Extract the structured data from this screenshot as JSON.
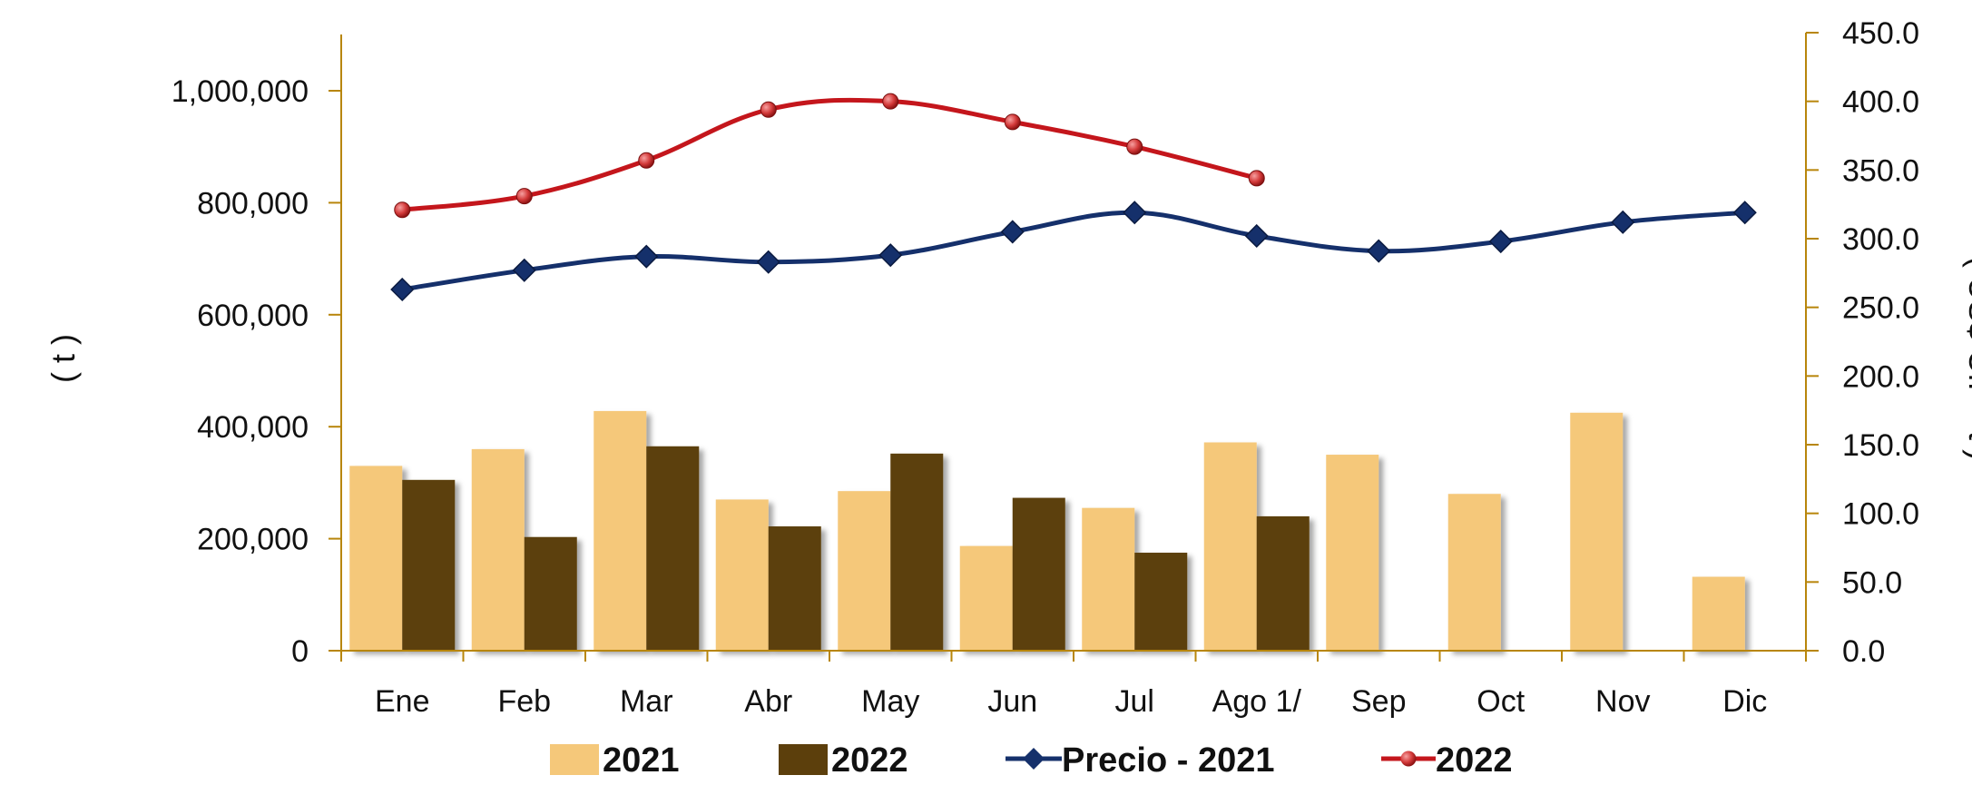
{
  "chart_data": {
    "type": "bar",
    "categories": [
      "Ene",
      "Feb",
      "Mar",
      "Abr",
      "May",
      "Jun",
      "Jul",
      "Ago  1/",
      "Sep",
      "Oct",
      "Nov",
      "Dic"
    ],
    "ylabel": "( t )",
    "y2label": "( US$ CIF - t )",
    "ylim": [
      0,
      1100000
    ],
    "y2lim": [
      0,
      450
    ],
    "y_ticks": [
      "0",
      "200,000",
      "400,000",
      "600,000",
      "800,000",
      "1,000,000"
    ],
    "y2_ticks": [
      "0.0",
      "50.0",
      "100.0",
      "150.0",
      "200.0",
      "250.0",
      "300.0",
      "350.0",
      "400.0",
      "450.0"
    ],
    "grid": false,
    "legend_position": "bottom",
    "bar_series": [
      {
        "name": "2021",
        "color": "#f5c87a",
        "values": [
          330000,
          360000,
          428000,
          270000,
          285000,
          187000,
          255000,
          372000,
          350000,
          280000,
          425000,
          132000
        ]
      },
      {
        "name": "2022",
        "color": "#5c3f0c",
        "values": [
          305000,
          203000,
          365000,
          222000,
          352000,
          273000,
          175000,
          240000,
          null,
          null,
          null,
          null
        ]
      }
    ],
    "line_series": [
      {
        "name": "Precio - 2021",
        "color": "#15306b",
        "marker": "diamond",
        "axis": "right",
        "values": [
          263,
          277,
          287,
          283,
          288,
          305,
          319,
          302,
          291,
          298,
          312,
          319
        ]
      },
      {
        "name": "2022",
        "color": "#c4161c",
        "marker": "circle",
        "axis": "right",
        "values": [
          321,
          331,
          357,
          394,
          400,
          385,
          367,
          344,
          null,
          null,
          null,
          null
        ]
      }
    ]
  },
  "colors": {
    "axis": "#b8860b",
    "text": "#111111"
  }
}
